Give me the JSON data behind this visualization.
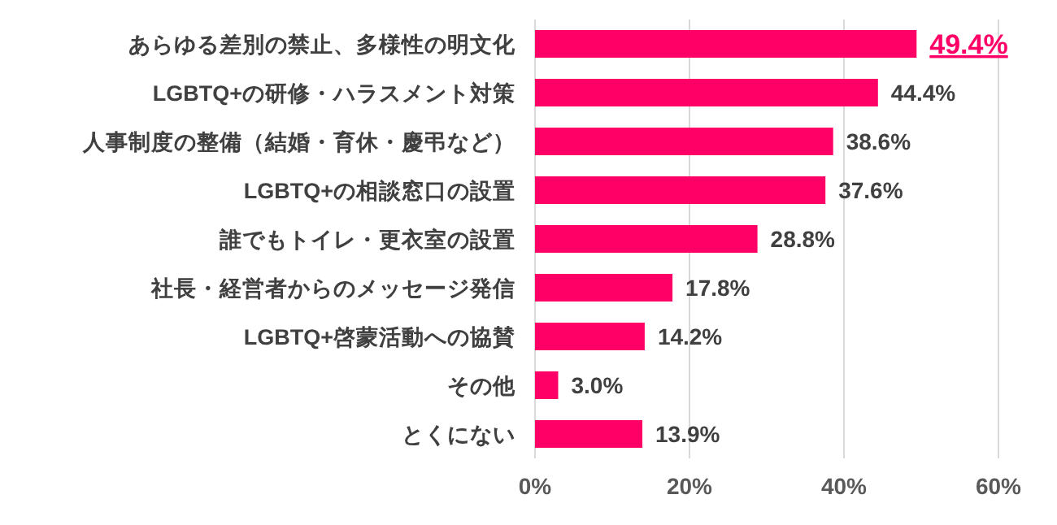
{
  "chart_data": {
    "type": "bar",
    "orientation": "horizontal",
    "categories": [
      "あらゆる差別の禁止、多様性の明文化",
      "LGBTQ+の研修・ハラスメント対策",
      "人事制度の整備（結婚・育休・慶弔など）",
      "LGBTQ+の相談窓口の設置",
      "誰でもトイレ・更衣室の設置",
      "社長・経営者からのメッセージ発信",
      "LGBTQ+啓蒙活動への協賛",
      "その他",
      "とくにない"
    ],
    "values": [
      49.4,
      44.4,
      38.6,
      37.6,
      28.8,
      17.8,
      14.2,
      3.0,
      13.9
    ],
    "value_labels": [
      "49.4%",
      "44.4%",
      "38.6%",
      "37.6%",
      "28.8%",
      "17.8%",
      "14.2%",
      "3.0%",
      "13.9%"
    ],
    "color": "#ff0066",
    "xlim": [
      0,
      60
    ],
    "xticks": [
      {
        "value": 0,
        "label": "0%"
      },
      {
        "value": 20,
        "label": "20%"
      },
      {
        "value": 40,
        "label": "40%"
      },
      {
        "value": 60,
        "label": "60%"
      }
    ],
    "grid": "x"
  }
}
